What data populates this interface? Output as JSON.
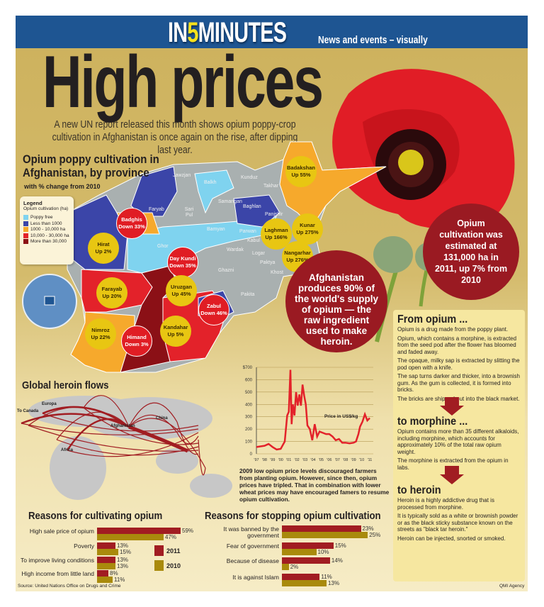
{
  "header": {
    "brand_prefix": "IN",
    "brand_number": "5",
    "brand_suffix": "MINUTES",
    "tagline": "News and events – visually"
  },
  "title": "High prices",
  "intro": "A new UN report released this month shows opium poppy-crop cultivation in Afghanistan is once again on the rise, after dipping last year.",
  "map": {
    "title": "Opium poppy cultivation in Afghanistan, by province",
    "subtitle": "with % change from 2010",
    "legend": {
      "title": "Legend",
      "subtitle": "Opium cultivation (ha)",
      "items": [
        {
          "label": "Poppy free",
          "color": "#7fd3ef"
        },
        {
          "label": "Less than 1000",
          "color": "#3b45a8"
        },
        {
          "label": "1000 - 10,000 ha",
          "color": "#f6a92c"
        },
        {
          "label": "10,000 - 30,000 ha",
          "color": "#e3222a"
        },
        {
          "label": "More than 30,000",
          "color": "#8b1016"
        }
      ]
    },
    "bubbles": [
      {
        "name": "Badakshan",
        "change": "Up 55%",
        "type": "y"
      },
      {
        "name": "Badghis",
        "change": "Down 33%",
        "type": "r"
      },
      {
        "name": "Hirat",
        "change": "Up 2%",
        "type": "y"
      },
      {
        "name": "Day Kundi",
        "change": "Down 35%",
        "type": "r"
      },
      {
        "name": "Uruzgan",
        "change": "Up 45%",
        "type": "y"
      },
      {
        "name": "Zabul",
        "change": "Down 46%",
        "type": "r"
      },
      {
        "name": "Farayab",
        "change": "Up 20%",
        "type": "y"
      },
      {
        "name": "Nimroz",
        "change": "Up 22%",
        "type": "y"
      },
      {
        "name": "Himand",
        "change": "Down 3%",
        "type": "r"
      },
      {
        "name": "Kandahar",
        "change": "Up 5%",
        "type": "y"
      },
      {
        "name": "Laghman",
        "change": "Up 166%",
        "type": "y"
      },
      {
        "name": "Kunar",
        "change": "Up 275%",
        "type": "y"
      },
      {
        "name": "Nangarhar",
        "change": "Up 276%",
        "type": "y"
      }
    ],
    "province_labels": [
      "Jawzjan",
      "Balkh",
      "Kunduz",
      "Takhar",
      "Samangan",
      "Baghlan",
      "Faryab",
      "Sari Pul",
      "Panjshir",
      "Bamyan",
      "Parwan",
      "Kabul",
      "Wardak",
      "Logar",
      "Ghor",
      "Paktya",
      "Ghazni",
      "Khost",
      "Pakita"
    ]
  },
  "callouts": {
    "supply": "Afghanistan produces 90% of the world's supply of opium — the raw ingredient used to make heroin.",
    "estimate": "Opium cultivation was estimated at 131,000 ha in 2011, up 7% from 2010"
  },
  "process": {
    "opium": {
      "title": "From opium ...",
      "paragraphs": [
        "Opium is a drug made from the poppy plant.",
        "Opium, which contains a morphine, is extracted from the seed pod after the flower has bloomed and faded away.",
        "The opaque, milky sap is extracted by slitting the pod open with a knife.",
        "The sap turns darker and thicker, into a brownish gum. As the gum is collected, it is formed into bricks.",
        "The bricks are shipped out into the black market."
      ]
    },
    "morphine": {
      "title": "to morphine ...",
      "paragraphs": [
        "Opium contains more than 35 different alkaloids, including morphine, which accounts for approximately 10% of the total raw opium weight.",
        "The morphine is extracted from the opium in labs."
      ]
    },
    "heroin": {
      "title": "to heroin",
      "paragraphs": [
        "Heroin is a highly addictive drug that is processed from morphine.",
        "It is typically sold as a white or brownish powder or as the black sticky substance known on the streets as \"black tar heroin.\"",
        "Heroin can be injected, snorted or smoked."
      ]
    }
  },
  "flows": {
    "title": "Global heroin flows",
    "labels": {
      "europa": "Europa",
      "canada": "To Canada",
      "afghanistan": "Afghanistan",
      "china": "China",
      "africa": "Africa"
    }
  },
  "price_caption": "2009 low opium price levels discouraged farmers from planting opium. However, since then, opium prices have tripled. That in combination with lower wheat prices may have encouraged famers to resume opium cultivation.",
  "chart_data": [
    {
      "type": "line",
      "title": "",
      "annotation": "Price in US$/kg",
      "ylim": [
        0,
        700
      ],
      "yticks": [
        "$700",
        "600",
        "500",
        "400",
        "300",
        "200",
        "100",
        "0"
      ],
      "xticks": [
        "'97",
        "'98",
        "'99",
        "'00",
        "'01",
        "'02",
        "'03",
        "'04",
        "'05",
        "'06",
        "'07",
        "'08",
        "'09",
        "'10",
        "'11"
      ],
      "xlim": [
        1997,
        2011
      ],
      "grid": true,
      "color": "#e3222a",
      "x": [
        1997,
        1997.5,
        1998,
        1998.5,
        1999,
        1999.5,
        2000,
        2000.5,
        2000.8,
        2001,
        2001.2,
        2001.35,
        2001.5,
        2001.7,
        2001.9,
        2002.1,
        2002.3,
        2002.5,
        2002.7,
        2002.9,
        2003.1,
        2003.3,
        2003.6,
        2003.9,
        2004.2,
        2004.5,
        2004.8,
        2005.2,
        2005.6,
        2006,
        2006.4,
        2006.8,
        2007.2,
        2007.6,
        2008,
        2008.5,
        2009,
        2009.3,
        2009.6,
        2009.8,
        2010.1,
        2010.4,
        2010.7,
        2011
      ],
      "y": [
        55,
        60,
        65,
        80,
        55,
        35,
        40,
        100,
        310,
        340,
        680,
        240,
        400,
        310,
        500,
        390,
        480,
        390,
        560,
        470,
        400,
        230,
        200,
        110,
        240,
        140,
        180,
        170,
        160,
        160,
        140,
        110,
        120,
        90,
        90,
        85,
        90,
        100,
        160,
        220,
        260,
        320,
        270,
        290
      ]
    },
    {
      "type": "bar",
      "title": "Reasons for cultivating opium",
      "categories": [
        "High sale price of opium",
        "Poverty",
        "To improve living conditions",
        "High income from little land"
      ],
      "series": [
        {
          "name": "2011",
          "values": [
            59,
            13,
            13,
            8
          ],
          "color": "#a11d22"
        },
        {
          "name": "2010",
          "values": [
            47,
            15,
            13,
            11
          ],
          "color": "#a98a0c"
        }
      ],
      "value_suffix": "%"
    },
    {
      "type": "bar",
      "title": "Reasons for stopping opium cultivation",
      "categories": [
        "It was banned by the government",
        "Fear of government",
        "Because of disease",
        "It is against Islam"
      ],
      "series": [
        {
          "name": "2011",
          "values": [
            23,
            15,
            14,
            11
          ],
          "color": "#a11d22"
        },
        {
          "name": "2010",
          "values": [
            25,
            10,
            2,
            13
          ],
          "color": "#a98a0c"
        }
      ],
      "value_suffix": "%"
    }
  ],
  "footer": {
    "source": "Source: United Nations Office on Drugs and Crime",
    "credit": "QMI Agency"
  }
}
